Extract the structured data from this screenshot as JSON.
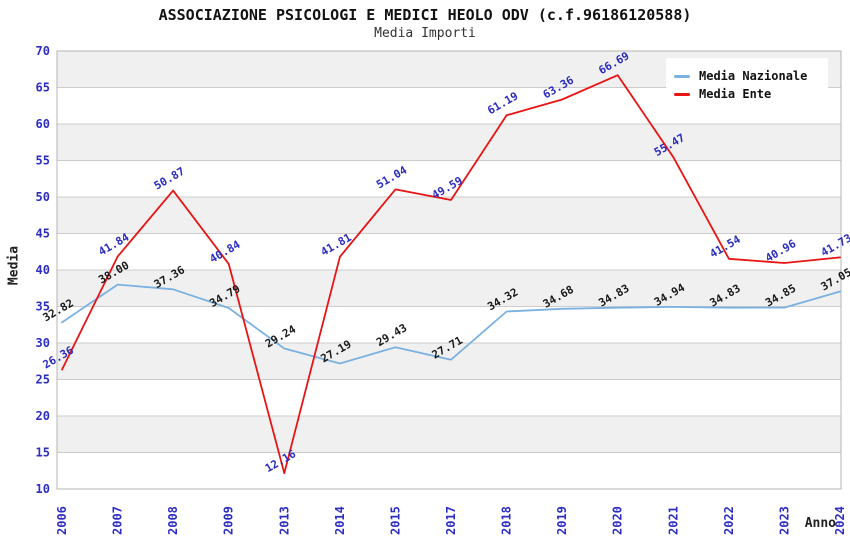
{
  "title": "ASSOCIAZIONE PSICOLOGI E MEDICI HEOLO ODV (c.f.96186120588)",
  "subtitle": "Media Importi",
  "axis": {
    "x_label": "Anno",
    "y_label": "Media"
  },
  "legend": {
    "position": "top-right",
    "items": [
      {
        "name": "Media Nazionale",
        "color": "#7bb1e0"
      },
      {
        "name": "Media Ente",
        "color": "#e81414"
      }
    ]
  },
  "chart_data": {
    "type": "line",
    "title": "ASSOCIAZIONE PSICOLOGI E MEDICI HEOLO ODV (c.f.96186120588)",
    "subtitle": "Media Importi",
    "xlabel": "Anno",
    "ylabel": "Media",
    "categories": [
      "2006",
      "2007",
      "2008",
      "2009",
      "2013",
      "2014",
      "2015",
      "2017",
      "2018",
      "2019",
      "2020",
      "2021",
      "2022",
      "2023",
      "2024"
    ],
    "series": [
      {
        "name": "Media Nazionale",
        "color": "#7bb1e0",
        "label_color": "#1a1a1a",
        "values": [
          32.82,
          38.0,
          37.36,
          34.79,
          29.24,
          27.19,
          29.43,
          27.71,
          34.32,
          34.68,
          34.83,
          34.94,
          34.83,
          34.85,
          37.05
        ]
      },
      {
        "name": "Media Ente",
        "color": "#e81414",
        "label_color": "#2b2bc0",
        "values": [
          26.36,
          41.84,
          50.87,
          40.84,
          12.16,
          41.81,
          51.04,
          49.59,
          61.19,
          63.36,
          66.69,
          55.47,
          41.54,
          40.96,
          41.73
        ]
      }
    ],
    "ylim": [
      10,
      70
    ],
    "yticks": [
      10,
      15,
      20,
      25,
      30,
      35,
      40,
      45,
      50,
      55,
      60,
      65,
      70
    ],
    "grid": true,
    "legend_position": "top-right",
    "style": {
      "tick_label_color": "#2d2dc4",
      "band_fill": "#f0f0f0",
      "grid_color": "#cccccc",
      "plot_border_color": "#b5b5b5",
      "background": "#ffffff"
    }
  }
}
